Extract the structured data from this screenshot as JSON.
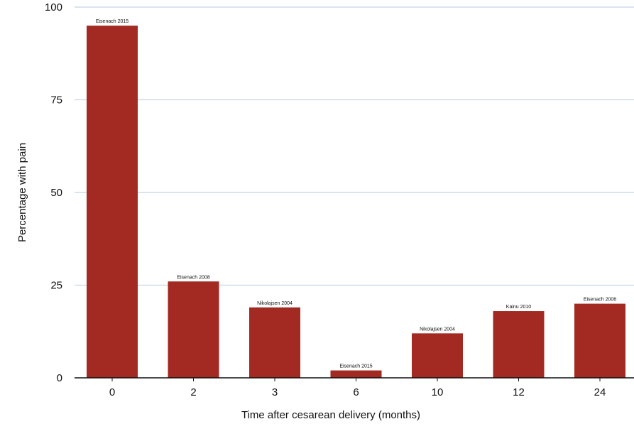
{
  "chart_data": {
    "type": "bar",
    "categories": [
      "0",
      "2",
      "3",
      "6",
      "10",
      "12",
      "24"
    ],
    "values": [
      95,
      26,
      19,
      2,
      12,
      18,
      20
    ],
    "data_labels": [
      "Eisenach 2015",
      "Eisenach 2008",
      "Nikolajsen 2004",
      "Eisenach 2015",
      "Nikolajsen 2004",
      "Kainu 2010",
      "Eisenach 2006"
    ],
    "xlabel": "Time after cesarean delivery (months)",
    "ylabel": "Percentage with pain",
    "ylim": [
      0,
      100
    ],
    "yticks": [
      0,
      25,
      50,
      75,
      100
    ],
    "grid": true,
    "bar_color": "#a32a22",
    "grid_color": "#c5d3e4"
  }
}
